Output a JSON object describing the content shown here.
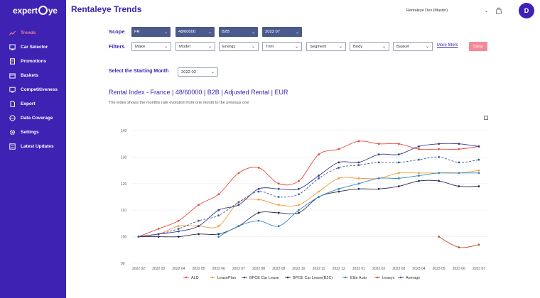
{
  "app": {
    "logo": "expert",
    "logo_tail": "ye"
  },
  "sidebar": {
    "items": [
      {
        "label": "Trends",
        "icon": "trend-icon",
        "active": true
      },
      {
        "label": "Car Selector",
        "icon": "car-icon"
      },
      {
        "label": "Promotions",
        "icon": "tag-icon"
      },
      {
        "label": "Baskets",
        "icon": "basket-icon"
      },
      {
        "label": "Competitiveness",
        "icon": "compare-icon"
      },
      {
        "label": "Export",
        "icon": "export-icon"
      },
      {
        "label": "Data Coverage",
        "icon": "globe-icon"
      },
      {
        "label": "Settings",
        "icon": "gear-icon"
      },
      {
        "label": "Latest Updates",
        "icon": "list-icon"
      }
    ]
  },
  "header": {
    "title": "Rentaleye Trends",
    "account": "Rentaleye Dev (Master)",
    "avatar": "D"
  },
  "scope": {
    "label": "Scope",
    "values": [
      "FR",
      "48/60000",
      "B2B",
      "2023 07"
    ]
  },
  "filters": {
    "label": "Filters",
    "items": [
      "Make",
      "Model",
      "Energy",
      "Trim",
      "Segment",
      "Body",
      "Basket"
    ],
    "more": "More filters",
    "clear": "Clear"
  },
  "start": {
    "label": "Select the Starting Month",
    "value": "2022 02"
  },
  "chart": {
    "title": "Rental Index - France | 48/60000 | B2B | Adjusted Rental | EUR",
    "subtitle": "The index shows the monthly rate evolution from one month to the previous one"
  },
  "chart_data": {
    "type": "line",
    "x": [
      "2022 02",
      "2022 03",
      "2022 04",
      "2022 05",
      "2022 06",
      "2022 07",
      "2022 08",
      "2022 09",
      "2022 10",
      "2022 11",
      "2022 12",
      "2023 01",
      "2023 02",
      "2023 03",
      "2023 04",
      "2023 05",
      "2023 06",
      "2023 07"
    ],
    "ylim": [
      90,
      140
    ],
    "yticks": [
      90,
      100,
      110,
      120,
      130,
      140
    ],
    "legend_position": "bottom",
    "series": [
      {
        "name": "ALD",
        "color": "#e74c3c",
        "values": [
          100,
          103,
          106,
          112,
          116,
          124,
          126,
          120,
          121,
          131,
          133,
          136,
          135,
          135,
          133,
          133,
          133,
          134
        ]
      },
      {
        "name": "LeasePlan",
        "color": "#f39c38",
        "values": [
          100,
          101,
          104,
          104,
          104,
          113,
          114,
          112,
          112,
          117,
          122,
          122,
          122,
          124,
          124,
          124,
          124,
          125
        ]
      },
      {
        "name": "BPCE Car Lease",
        "color": "#3b3a8f",
        "values": [
          100,
          101,
          102,
          104,
          110,
          112,
          118,
          118,
          118,
          123,
          128,
          128,
          131,
          131,
          134,
          135,
          135,
          134
        ]
      },
      {
        "name": "BPCE Car Lease(B2C)",
        "color": "#2c2c54",
        "values": [
          100,
          100,
          100,
          101,
          101,
          104,
          109,
          109,
          109,
          115,
          117,
          118,
          118,
          119,
          121,
          121,
          119,
          119
        ]
      },
      {
        "name": "Elite Auto",
        "color": "#2e86c1",
        "values": [
          null,
          null,
          null,
          null,
          100,
          104,
          106,
          104,
          110,
          115,
          118,
          120,
          122,
          122,
          123,
          124,
          124,
          124
        ]
      },
      {
        "name": "Leasys",
        "color": "#c0522b",
        "values": [
          null,
          null,
          null,
          null,
          null,
          null,
          null,
          null,
          null,
          null,
          null,
          null,
          null,
          null,
          null,
          100,
          96,
          97
        ]
      },
      {
        "name": "Average",
        "color": "#3c5a9a",
        "dashed": true,
        "values": [
          100,
          101,
          103,
          106,
          108,
          113,
          117,
          115,
          116,
          122,
          126,
          127,
          128,
          128,
          129,
          130,
          128,
          129
        ]
      }
    ]
  },
  "colors": {
    "sidebar": "#3d22b3",
    "accent_active": "#ff7c8f",
    "scope_select": "#4a5a8c",
    "clear_button": "#f28b98"
  }
}
